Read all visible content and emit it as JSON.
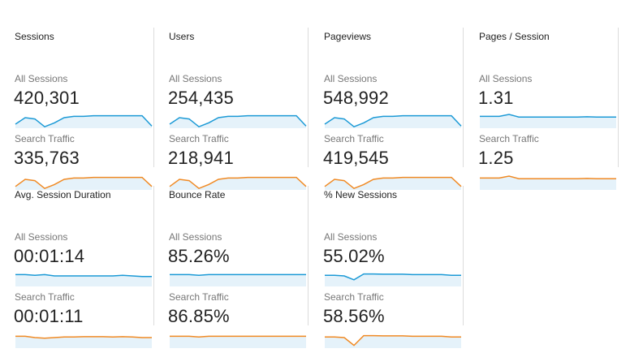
{
  "colors": {
    "all_sessions_line": "#1c9ad6",
    "search_traffic_line": "#f08a24",
    "sparkline_fill": "#e5f2fa",
    "divider": "#dcdcdc"
  },
  "metrics": [
    {
      "title": "Sessions",
      "segments": [
        {
          "label": "All Sessions",
          "value": "420,301",
          "trend": [
            0.25,
            0.75,
            0.65,
            0.05,
            0.35,
            0.75,
            0.85,
            0.85,
            0.9,
            0.9,
            0.9,
            0.9,
            0.9,
            0.9,
            0.1
          ]
        },
        {
          "label": "Search Traffic",
          "value": "335,763",
          "trend": [
            0.2,
            0.75,
            0.65,
            0.05,
            0.35,
            0.75,
            0.85,
            0.85,
            0.9,
            0.9,
            0.9,
            0.9,
            0.9,
            0.9,
            0.2
          ]
        }
      ]
    },
    {
      "title": "Users",
      "segments": [
        {
          "label": "All Sessions",
          "value": "254,435",
          "trend": [
            0.25,
            0.75,
            0.65,
            0.05,
            0.35,
            0.75,
            0.85,
            0.85,
            0.9,
            0.9,
            0.9,
            0.9,
            0.9,
            0.9,
            0.1
          ]
        },
        {
          "label": "Search Traffic",
          "value": "218,941",
          "trend": [
            0.2,
            0.75,
            0.65,
            0.05,
            0.35,
            0.75,
            0.85,
            0.85,
            0.9,
            0.9,
            0.9,
            0.9,
            0.9,
            0.9,
            0.2
          ]
        }
      ]
    },
    {
      "title": "Pageviews",
      "segments": [
        {
          "label": "All Sessions",
          "value": "548,992",
          "trend": [
            0.25,
            0.75,
            0.65,
            0.05,
            0.35,
            0.75,
            0.85,
            0.85,
            0.9,
            0.9,
            0.9,
            0.9,
            0.9,
            0.9,
            0.1
          ]
        },
        {
          "label": "Search Traffic",
          "value": "419,545",
          "trend": [
            0.2,
            0.75,
            0.65,
            0.05,
            0.35,
            0.75,
            0.85,
            0.85,
            0.9,
            0.9,
            0.9,
            0.9,
            0.9,
            0.9,
            0.2
          ]
        }
      ]
    },
    {
      "title": "Pages / Session",
      "segments": [
        {
          "label": "All Sessions",
          "value": "1.31",
          "trend": [
            0.85,
            0.85,
            0.85,
            1.0,
            0.8,
            0.8,
            0.8,
            0.8,
            0.8,
            0.8,
            0.8,
            0.82,
            0.8,
            0.8,
            0.8
          ]
        },
        {
          "label": "Search Traffic",
          "value": "1.25",
          "trend": [
            0.85,
            0.85,
            0.85,
            1.0,
            0.8,
            0.8,
            0.8,
            0.8,
            0.8,
            0.8,
            0.8,
            0.82,
            0.8,
            0.8,
            0.8
          ]
        }
      ]
    },
    {
      "title": "Avg. Session Duration",
      "segments": [
        {
          "label": "All Sessions",
          "value": "00:01:14",
          "trend": [
            0.85,
            0.85,
            0.8,
            0.85,
            0.75,
            0.75,
            0.75,
            0.75,
            0.75,
            0.75,
            0.75,
            0.8,
            0.75,
            0.7,
            0.7
          ]
        },
        {
          "label": "Search Traffic",
          "value": "00:01:11",
          "trend": [
            0.85,
            0.85,
            0.75,
            0.7,
            0.75,
            0.8,
            0.8,
            0.82,
            0.82,
            0.82,
            0.8,
            0.82,
            0.8,
            0.75,
            0.75
          ]
        }
      ]
    },
    {
      "title": "Bounce Rate",
      "segments": [
        {
          "label": "All Sessions",
          "value": "85.26%",
          "trend": [
            0.85,
            0.85,
            0.85,
            0.8,
            0.85,
            0.85,
            0.85,
            0.85,
            0.85,
            0.85,
            0.85,
            0.85,
            0.85,
            0.85,
            0.85
          ]
        },
        {
          "label": "Search Traffic",
          "value": "86.85%",
          "trend": [
            0.85,
            0.85,
            0.85,
            0.8,
            0.85,
            0.85,
            0.85,
            0.85,
            0.85,
            0.85,
            0.85,
            0.85,
            0.85,
            0.85,
            0.85
          ]
        }
      ]
    },
    {
      "title": "% New Sessions",
      "segments": [
        {
          "label": "All Sessions",
          "value": "55.02%",
          "trend": [
            0.8,
            0.8,
            0.75,
            0.45,
            0.9,
            0.9,
            0.88,
            0.88,
            0.88,
            0.85,
            0.85,
            0.85,
            0.85,
            0.8,
            0.8
          ]
        },
        {
          "label": "Search Traffic",
          "value": "58.56%",
          "trend": [
            0.8,
            0.8,
            0.75,
            0.15,
            0.9,
            0.9,
            0.88,
            0.88,
            0.88,
            0.85,
            0.85,
            0.85,
            0.85,
            0.8,
            0.8
          ]
        }
      ]
    }
  ]
}
